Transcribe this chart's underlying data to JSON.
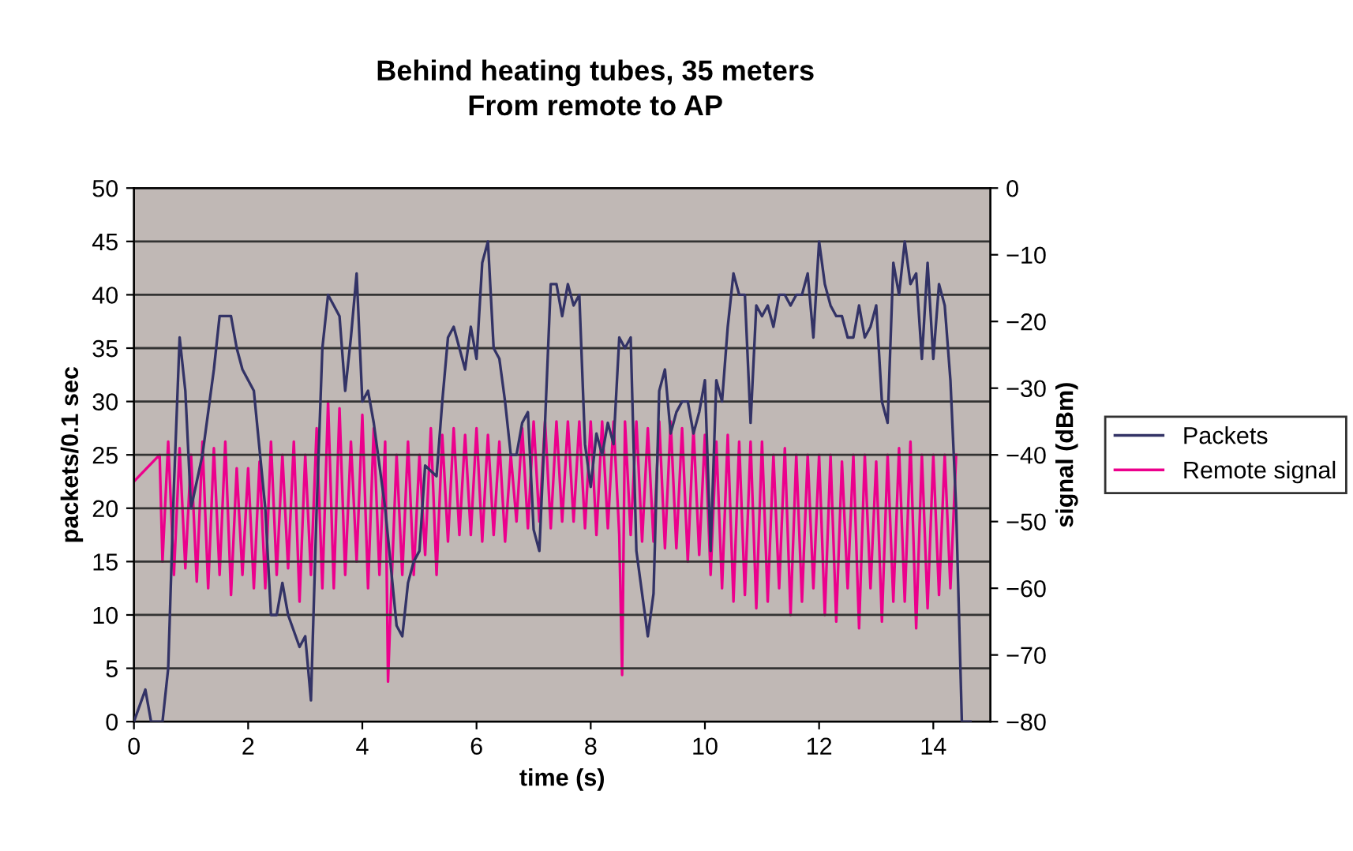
{
  "chart_data": {
    "type": "line",
    "title": "Behind heating tubes, 35 meters\nFrom remote to AP",
    "xlabel": "time (s)",
    "ylabel": "packets/0.1 sec",
    "y2label": "signal (dBm)",
    "xlim": [
      0,
      15
    ],
    "xticks": [
      0,
      2,
      4,
      6,
      8,
      10,
      12,
      14
    ],
    "ylim": [
      0,
      50
    ],
    "yticks": [
      0,
      5,
      10,
      15,
      20,
      25,
      30,
      35,
      40,
      45,
      50
    ],
    "y2lim": [
      -80,
      0
    ],
    "y2ticks": [
      -80,
      -70,
      -60,
      -50,
      -40,
      -30,
      -20,
      -10,
      0
    ],
    "grid": "y",
    "legend": "right",
    "marker": "none",
    "line_style": "solid",
    "series": [
      {
        "name": "Packets",
        "color": "#333366",
        "x": [
          0,
          0.2,
          0.3,
          0.5,
          0.6,
          0.7,
          0.8,
          0.9,
          1.0,
          1.2,
          1.4,
          1.5,
          1.7,
          1.8,
          1.9,
          2.0,
          2.1,
          2.3,
          2.4,
          2.5,
          2.6,
          2.7,
          2.9,
          3.0,
          3.1,
          3.2,
          3.3,
          3.4,
          3.5,
          3.6,
          3.7,
          3.8,
          3.9,
          4.0,
          4.1,
          4.2,
          4.4,
          4.6,
          4.7,
          4.8,
          4.9,
          5.0,
          5.1,
          5.3,
          5.4,
          5.5,
          5.6,
          5.7,
          5.8,
          5.9,
          6.0,
          6.1,
          6.2,
          6.3,
          6.4,
          6.5,
          6.6,
          6.7,
          6.8,
          6.9,
          7.0,
          7.1,
          7.2,
          7.3,
          7.4,
          7.5,
          7.6,
          7.7,
          7.8,
          7.9,
          8.0,
          8.1,
          8.2,
          8.3,
          8.4,
          8.5,
          8.6,
          8.7,
          8.8,
          8.9,
          9.0,
          9.1,
          9.2,
          9.3,
          9.4,
          9.5,
          9.6,
          9.7,
          9.8,
          9.9,
          10.0,
          10.1,
          10.2,
          10.3,
          10.4,
          10.5,
          10.6,
          10.7,
          10.8,
          10.9,
          11.0,
          11.1,
          11.2,
          11.3,
          11.4,
          11.5,
          11.6,
          11.7,
          11.8,
          11.9,
          12.0,
          12.1,
          12.2,
          12.3,
          12.4,
          12.5,
          12.6,
          12.7,
          12.8,
          12.9,
          13.0,
          13.1,
          13.2,
          13.3,
          13.4,
          13.5,
          13.6,
          13.7,
          13.8,
          13.9,
          14.0,
          14.1,
          14.2,
          14.3,
          14.4,
          14.5,
          14.65
        ],
        "values": [
          0,
          3,
          0,
          0,
          5,
          22,
          36,
          31,
          20,
          25,
          33,
          38,
          38,
          35,
          33,
          32,
          31,
          20,
          10,
          10,
          13,
          10,
          7,
          8,
          2,
          20,
          35,
          40,
          39,
          38,
          31,
          36,
          42,
          30,
          31,
          28,
          20,
          9,
          8,
          13,
          15,
          16,
          24,
          23,
          30,
          36,
          37,
          35,
          33,
          37,
          34,
          43,
          45,
          35,
          34,
          30,
          25,
          25,
          28,
          29,
          18,
          16,
          28,
          41,
          41,
          38,
          41,
          39,
          40,
          26,
          22,
          27,
          25,
          28,
          26,
          36,
          35,
          36,
          16,
          12,
          8,
          12,
          31,
          33,
          27,
          29,
          30,
          30,
          27,
          29,
          32,
          16,
          32,
          30,
          37,
          42,
          40,
          40,
          28,
          39,
          38,
          39,
          37,
          40,
          40,
          39,
          40,
          40,
          42,
          36,
          45,
          41,
          39,
          38,
          38,
          36,
          36,
          39,
          36,
          37,
          39,
          30,
          28,
          43,
          40,
          45,
          41,
          42,
          34,
          43,
          34,
          41,
          39,
          32,
          20,
          0,
          0
        ]
      },
      {
        "name": "Remote signal",
        "color": "#ec008c",
        "axis": "y2",
        "x": [
          0,
          0.45,
          0.5,
          0.6,
          0.7,
          0.8,
          0.9,
          1.0,
          1.1,
          1.2,
          1.3,
          1.4,
          1.5,
          1.6,
          1.7,
          1.8,
          1.9,
          2.0,
          2.1,
          2.2,
          2.3,
          2.4,
          2.5,
          2.6,
          2.7,
          2.8,
          2.9,
          3.0,
          3.1,
          3.2,
          3.3,
          3.4,
          3.5,
          3.6,
          3.7,
          3.8,
          3.9,
          4.0,
          4.1,
          4.2,
          4.3,
          4.4,
          4.45,
          4.5,
          4.6,
          4.7,
          4.8,
          4.9,
          5.0,
          5.1,
          5.2,
          5.3,
          5.4,
          5.5,
          5.6,
          5.7,
          5.8,
          5.9,
          6.0,
          6.1,
          6.2,
          6.3,
          6.4,
          6.5,
          6.6,
          6.7,
          6.8,
          6.9,
          7.0,
          7.1,
          7.2,
          7.3,
          7.4,
          7.5,
          7.6,
          7.7,
          7.8,
          7.9,
          8.0,
          8.1,
          8.2,
          8.3,
          8.4,
          8.5,
          8.55,
          8.6,
          8.7,
          8.8,
          8.9,
          9.0,
          9.1,
          9.2,
          9.3,
          9.4,
          9.5,
          9.6,
          9.7,
          9.8,
          9.9,
          10.0,
          10.1,
          10.2,
          10.3,
          10.4,
          10.5,
          10.6,
          10.7,
          10.8,
          10.9,
          11.0,
          11.1,
          11.2,
          11.3,
          11.4,
          11.5,
          11.6,
          11.7,
          11.8,
          11.9,
          12.0,
          12.1,
          12.2,
          12.3,
          12.4,
          12.5,
          12.6,
          12.7,
          12.8,
          12.9,
          13.0,
          13.1,
          13.2,
          13.3,
          13.4,
          13.5,
          13.6,
          13.7,
          13.8,
          13.9,
          14.0,
          14.1,
          14.2,
          14.3,
          14.4
        ],
        "values": [
          -44,
          -40,
          -56,
          -38,
          -58,
          -39,
          -57,
          -40,
          -59,
          -38,
          -60,
          -39,
          -58,
          -38,
          -61,
          -42,
          -58,
          -42,
          -60,
          -41,
          -60,
          -38,
          -58,
          -40,
          -57,
          -38,
          -62,
          -40,
          -58,
          -36,
          -60,
          -32,
          -60,
          -33,
          -58,
          -38,
          -56,
          -34,
          -60,
          -36,
          -58,
          -38,
          -74,
          -62,
          -40,
          -58,
          -38,
          -58,
          -40,
          -55,
          -36,
          -58,
          -37,
          -53,
          -36,
          -52,
          -37,
          -52,
          -36,
          -53,
          -37,
          -52,
          -38,
          -53,
          -40,
          -50,
          -36,
          -51,
          -35,
          -50,
          -35,
          -51,
          -35,
          -50,
          -35,
          -50,
          -35,
          -51,
          -35,
          -52,
          -35,
          -51,
          -35,
          -52,
          -73,
          -35,
          -52,
          -35,
          -53,
          -36,
          -53,
          -35,
          -54,
          -35,
          -54,
          -36,
          -56,
          -36,
          -55,
          -37,
          -58,
          -38,
          -60,
          -37,
          -62,
          -38,
          -61,
          -38,
          -63,
          -38,
          -62,
          -40,
          -60,
          -39,
          -64,
          -40,
          -62,
          -40,
          -60,
          -40,
          -64,
          -40,
          -65,
          -41,
          -60,
          -40,
          -66,
          -40,
          -60,
          -41,
          -65,
          -40,
          -62,
          -39,
          -62,
          -38,
          -66,
          -40,
          -63,
          -40,
          -61,
          -40,
          -60,
          -40
        ]
      }
    ]
  }
}
